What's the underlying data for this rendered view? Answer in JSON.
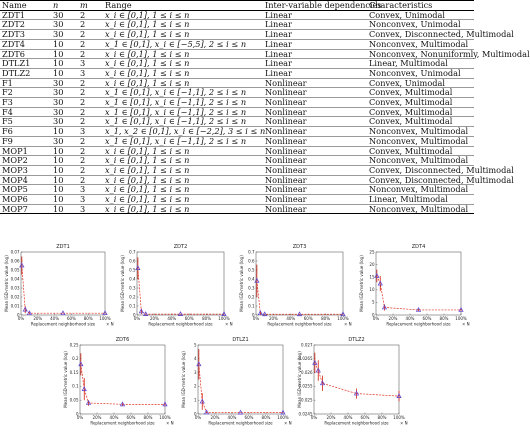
{
  "table": {
    "headers": [
      "Name",
      "n",
      "m",
      "Range",
      "Inter-variable dependencies",
      "Characteristics"
    ],
    "rows": [
      [
        "ZDT1",
        "30",
        "2",
        "x_i ∈ [0,1], 1 ≤ i ≤ n",
        "Linear",
        "Convex, Unimodal"
      ],
      [
        "ZDT2",
        "30",
        "2",
        "x_i ∈ [0,1], 1 ≤ i ≤ n",
        "Linear",
        "Nonconvex, Unimodal"
      ],
      [
        "ZDT3",
        "30",
        "2",
        "x_i ∈ [0,1], 1 ≤ i ≤ n",
        "Linear",
        "Convex, Disconnected, Multimodal"
      ],
      [
        "ZDT4",
        "10",
        "2",
        "x_1 ∈ [0,1], x_i ∈ [−5,5], 2 ≤ i ≤ n",
        "Linear",
        "Nonconvex, Multimodal"
      ],
      [
        "ZDT6",
        "10",
        "2",
        "x_i ∈ [0,1], 1 ≤ i ≤ n",
        "Linear",
        "Nonconvex, Nonuniformly, Multimodal"
      ],
      [
        "DTLZ1",
        "10",
        "3",
        "x_i ∈ [0,1], 1 ≤ i ≤ n",
        "Linear",
        "Linear, Multimodal"
      ],
      [
        "DTLZ2",
        "10",
        "3",
        "x_i ∈ [0,1], 1 ≤ i ≤ n",
        "Linear",
        "Nonconvex, Unimodal"
      ],
      [
        "F1",
        "30",
        "2",
        "x_i ∈ [0,1], 1 ≤ i ≤ n",
        "Nonlinear",
        "Convex, Unimodal"
      ],
      [
        "F2",
        "30",
        "2",
        "x_1 ∈ [0,1], x_i ∈ [−1,1], 2 ≤ i ≤ n",
        "Nonlinear",
        "Convex, Multimodal"
      ],
      [
        "F3",
        "30",
        "2",
        "x_1 ∈ [0,1], x_i ∈ [−1,1], 2 ≤ i ≤ n",
        "Nonlinear",
        "Convex, Multimodal"
      ],
      [
        "F4",
        "30",
        "2",
        "x_1 ∈ [0,1], x_i ∈ [−1,1], 2 ≤ i ≤ n",
        "Nonlinear",
        "Convex, Multimodal"
      ],
      [
        "F5",
        "30",
        "2",
        "x_1 ∈ [0,1], x_i ∈ [−1,1], 2 ≤ i ≤ n",
        "Nonlinear",
        "Convex, Multimodal"
      ],
      [
        "F6",
        "10",
        "3",
        "x_1, x_2 ∈ [0,1], x_i ∈ [−2,2], 3 ≤ i ≤ n",
        "Nonlinear",
        "Nonconvex, Multimodal"
      ],
      [
        "F9",
        "30",
        "2",
        "x_1 ∈ [0,1], x_i ∈ [−1,1], 2 ≤ i ≤ n",
        "Nonlinear",
        "Nonconvex, Multimodal"
      ],
      [
        "MOP1",
        "10",
        "2",
        "x_i ∈ [0,1], 1 ≤ i ≤ n",
        "Nonlinear",
        "Convex, Multimodal"
      ],
      [
        "MOP2",
        "10",
        "2",
        "x_i ∈ [0,1], 1 ≤ i ≤ n",
        "Nonlinear",
        "Nonconvex, Multimodal"
      ],
      [
        "MOP3",
        "10",
        "2",
        "x_i ∈ [0,1], 1 ≤ i ≤ n",
        "Nonlinear",
        "Convex, Disconnected, Multimodal"
      ],
      [
        "MOP4",
        "10",
        "2",
        "x_i ∈ [0,1], 1 ≤ i ≤ n",
        "Nonlinear",
        "Convex, Disconnected, Multimodal"
      ],
      [
        "MOP5",
        "10",
        "3",
        "x_i ∈ [0,1], 1 ≤ i ≤ n",
        "Nonlinear",
        "Nonconvex, Multimodal"
      ],
      [
        "MOP6",
        "10",
        "3",
        "x_i ∈ [0,1], 1 ≤ i ≤ n",
        "Nonlinear",
        "Linear, Multimodal"
      ],
      [
        "MOP7",
        "10",
        "3",
        "x_i ∈ [0,1], 1 ≤ i ≤ n",
        "Nonlinear",
        "Nonconvex, Multimodal"
      ]
    ]
  },
  "chart_data": [
    {
      "type": "line",
      "title": "ZDT1",
      "xlabel": "Replacement neighborhood size",
      "ylabel": "Mean IGD-metric value (log)",
      "xticks": [
        "0%",
        "20%",
        "40%",
        "60%",
        "80%",
        "100%"
      ],
      "xlim": [
        0,
        100
      ],
      "x_extra_label": "× N",
      "yticks": [
        "0",
        "0.01",
        "0.02",
        "0.03",
        "0.04",
        "0.05",
        "0.06",
        "0.07"
      ],
      "ylim": [
        0,
        0.07
      ],
      "series": [
        {
          "x": [
            1,
            5,
            10,
            50,
            100
          ],
          "values": [
            0.055,
            0.006,
            0.002,
            0.002,
            0.002
          ],
          "err": [
            0.01,
            0.004,
            0.001,
            0.0005,
            0.0005
          ]
        }
      ]
    },
    {
      "type": "line",
      "title": "ZDT2",
      "xlabel": "Replacement neighborhood size",
      "ylabel": "Mean IGD-metric value (log)",
      "xticks": [
        "0%",
        "20%",
        "40%",
        "60%",
        "80%",
        "100%"
      ],
      "xlim": [
        0,
        100
      ],
      "x_extra_label": "× N",
      "yticks": [
        "0",
        "0.1",
        "0.2",
        "0.3",
        "0.4",
        "0.5",
        "0.6",
        "0.7"
      ],
      "ylim": [
        0,
        0.7
      ],
      "series": [
        {
          "x": [
            1,
            5,
            10,
            50,
            100
          ],
          "values": [
            0.52,
            0.04,
            0.01,
            0.01,
            0.01
          ],
          "err": [
            0.12,
            0.03,
            0.005,
            0.003,
            0.003
          ]
        }
      ]
    },
    {
      "type": "line",
      "title": "ZDT3",
      "xlabel": "Replacement neighborhood size",
      "ylabel": "Mean IGD-metric value (log)",
      "xticks": [
        "0%",
        "20%",
        "40%",
        "60%",
        "80%",
        "100%"
      ],
      "xlim": [
        0,
        100
      ],
      "x_extra_label": "× N",
      "yticks": [
        "0",
        "0.1",
        "0.2",
        "0.3",
        "0.4",
        "0.5",
        "0.6",
        "0.7"
      ],
      "ylim": [
        0,
        0.7
      ],
      "series": [
        {
          "x": [
            1,
            5,
            10,
            50,
            100
          ],
          "values": [
            0.38,
            0.02,
            0.008,
            0.008,
            0.008
          ],
          "err": [
            0.18,
            0.02,
            0.004,
            0.003,
            0.003
          ]
        }
      ]
    },
    {
      "type": "line",
      "title": "ZDT4",
      "xlabel": "Replacement neighborhood size",
      "ylabel": "Mean IGD-metric value (log)",
      "xticks": [
        "0%",
        "20%",
        "40%",
        "60%",
        "80%",
        "100%"
      ],
      "xlim": [
        0,
        100
      ],
      "x_extra_label": "× N",
      "yticks": [
        "0",
        "5",
        "10",
        "15",
        "20",
        "25"
      ],
      "ylim": [
        0,
        25
      ],
      "series": [
        {
          "x": [
            1,
            5,
            10,
            50,
            100
          ],
          "values": [
            15.5,
            12.5,
            3,
            2,
            2
          ],
          "err": [
            2.5,
            3,
            1.2,
            0.4,
            0.4
          ]
        }
      ]
    },
    {
      "type": "line",
      "title": "ZDT6",
      "xlabel": "Replacement neighborhood size",
      "ylabel": "Mean IGD-metric value (log)",
      "xticks": [
        "0%",
        "20%",
        "40%",
        "60%",
        "80%",
        "100%"
      ],
      "xlim": [
        0,
        100
      ],
      "x_extra_label": "× N",
      "yticks": [
        "0",
        "0.05",
        "0.1",
        "0.15",
        "0.2",
        "0.25"
      ],
      "ylim": [
        0,
        0.25
      ],
      "series": [
        {
          "x": [
            1,
            5,
            10,
            50,
            100
          ],
          "values": [
            0.18,
            0.09,
            0.04,
            0.035,
            0.035
          ],
          "err": [
            0.04,
            0.04,
            0.01,
            0.004,
            0.004
          ]
        }
      ]
    },
    {
      "type": "line",
      "title": "DTLZ1",
      "xlabel": "Replacement neighborhood size",
      "ylabel": "Mean IGD-metric value (log)",
      "xticks": [
        "0%",
        "20%",
        "40%",
        "60%",
        "80%",
        "100%"
      ],
      "xlim": [
        0,
        100
      ],
      "x_extra_label": "× N",
      "yticks": [
        "0",
        "1",
        "2",
        "3",
        "4",
        "5"
      ],
      "ylim": [
        0,
        5
      ],
      "series": [
        {
          "x": [
            1,
            5,
            10,
            50,
            100
          ],
          "values": [
            3.6,
            0.9,
            0.12,
            0.1,
            0.1
          ],
          "err": [
            1.1,
            0.6,
            0.05,
            0.02,
            0.02
          ]
        }
      ]
    },
    {
      "type": "line",
      "title": "DTLZ2",
      "xlabel": "Replacement neighborhood size",
      "ylabel": "Mean IGD-metric value (log)",
      "xticks": [
        "0%",
        "20%",
        "40%",
        "60%",
        "80%",
        "100%"
      ],
      "xlim": [
        0,
        100
      ],
      "x_extra_label": "× N",
      "yticks": [
        "0.0245",
        "0.025",
        "0.0255",
        "0.026",
        "0.0265",
        "0.027"
      ],
      "ylim": [
        0.0245,
        0.0272
      ],
      "series": [
        {
          "x": [
            1,
            5,
            10,
            50,
            100
          ],
          "values": [
            0.0265,
            0.0262,
            0.0257,
            0.0253,
            0.0252
          ],
          "err": [
            0.0004,
            0.0004,
            0.0003,
            0.0002,
            0.0002
          ]
        }
      ]
    }
  ]
}
